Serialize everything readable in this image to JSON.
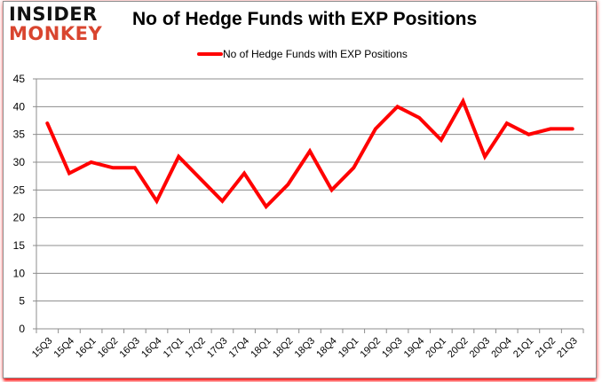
{
  "logo": {
    "line1": "INSIDER",
    "line2": "MONKEY",
    "colors": {
      "line1": "#111111",
      "line2": "#d9452f"
    }
  },
  "chart_data": {
    "type": "line",
    "title": "No of Hedge Funds with EXP Positions",
    "xlabel": "",
    "ylabel": "",
    "categories": [
      "15Q3",
      "15Q4",
      "16Q1",
      "16Q2",
      "16Q3",
      "16Q4",
      "17Q1",
      "17Q2",
      "17Q3",
      "17Q4",
      "18Q1",
      "18Q2",
      "18Q3",
      "18Q4",
      "19Q1",
      "19Q2",
      "19Q3",
      "19Q4",
      "20Q1",
      "20Q2",
      "20Q3",
      "20Q4",
      "21Q1",
      "21Q2",
      "21Q3"
    ],
    "series": [
      {
        "name": "No of Hedge Funds with EXP Positions",
        "color": "#ff0000",
        "values": [
          37,
          28,
          30,
          29,
          29,
          23,
          31,
          27,
          23,
          28,
          22,
          26,
          32,
          25,
          29,
          36,
          40,
          38,
          34,
          41,
          31,
          37,
          35,
          36,
          36
        ]
      }
    ],
    "ylim": [
      0,
      45
    ],
    "yticks": [
      0,
      5,
      10,
      15,
      20,
      25,
      30,
      35,
      40,
      45
    ],
    "grid": true,
    "legend_position": "top"
  }
}
